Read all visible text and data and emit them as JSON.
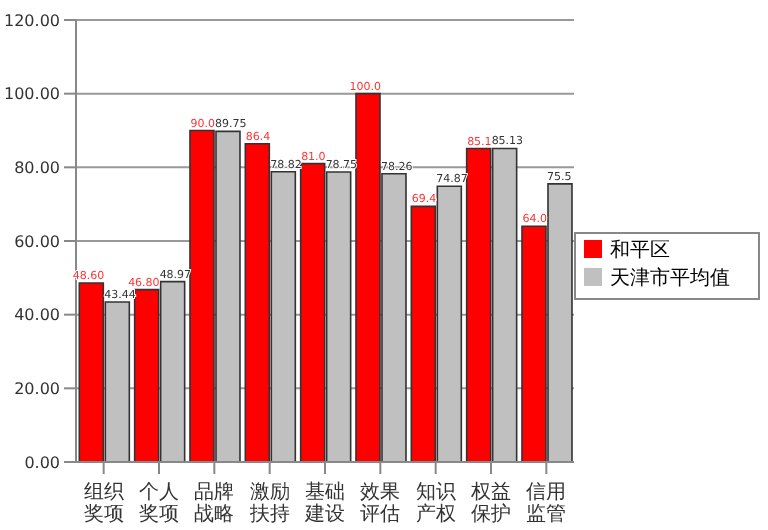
{
  "chart_data": {
    "type": "bar",
    "categories": [
      "组织奖项",
      "个人奖项",
      "品牌战略",
      "激励扶持",
      "基础建设",
      "效果评估",
      "知识产权",
      "权益保护",
      "信用监管"
    ],
    "series": [
      {
        "name": "和平区",
        "color": "#ff0000",
        "values": [
          48.6,
          46.8,
          90.0,
          86.4,
          81.0,
          100.0,
          69.4,
          85.1,
          64.0
        ],
        "value_labels": [
          "48.60",
          "46.80",
          "90.0",
          "86.4",
          "81.0",
          "100.0",
          "69.4",
          "85.1",
          "64.0"
        ]
      },
      {
        "name": "天津市平均值",
        "color": "#c0c0c0",
        "values": [
          43.44,
          48.97,
          89.75,
          78.82,
          78.75,
          78.26,
          74.87,
          85.13,
          75.5
        ],
        "value_labels": [
          "43.44",
          "48.97",
          "89.75",
          "78.82",
          "78.75",
          "78.26",
          "74.87",
          "85.13",
          "75.5"
        ]
      }
    ],
    "ylim": [
      0,
      120
    ],
    "yticks": [
      {
        "value": 0,
        "label": "0.00"
      },
      {
        "value": 20,
        "label": "20.00"
      },
      {
        "value": 40,
        "label": "40.00"
      },
      {
        "value": 60,
        "label": "60.00"
      },
      {
        "value": 80,
        "label": "80.00"
      },
      {
        "value": 100,
        "label": "100.00"
      },
      {
        "value": 120,
        "label": "120.00"
      }
    ],
    "grid": "y",
    "legend": "right"
  }
}
